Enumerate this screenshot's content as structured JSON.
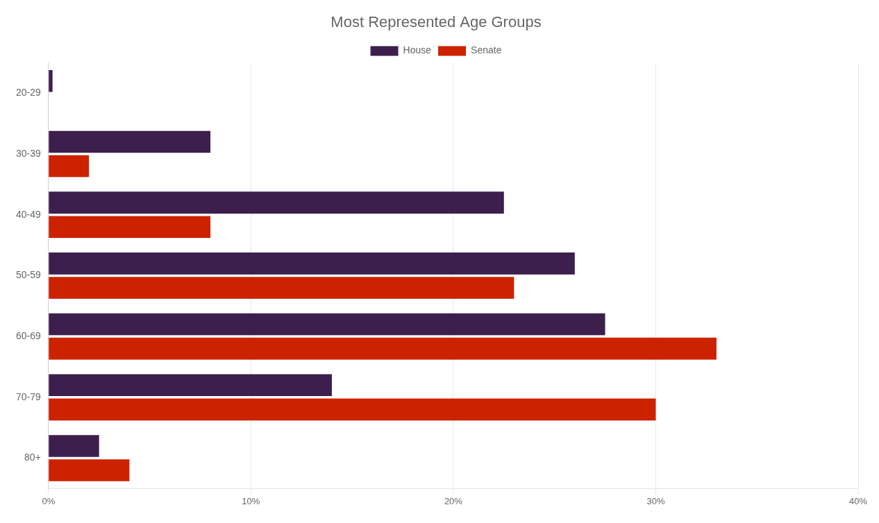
{
  "chart_data": {
    "type": "bar",
    "orientation": "horizontal",
    "title": "Most Represented Age Groups",
    "categories": [
      "20-29",
      "30-39",
      "40-49",
      "50-59",
      "60-69",
      "70-79",
      "80+"
    ],
    "series": [
      {
        "name": "House",
        "color": "#3d1f4e",
        "values": [
          0.2,
          8.0,
          22.5,
          26.0,
          27.5,
          14.0,
          2.5
        ]
      },
      {
        "name": "Senate",
        "color": "#cc2200",
        "values": [
          0.0,
          2.0,
          8.0,
          23.0,
          33.0,
          30.0,
          4.0
        ]
      }
    ],
    "xlim": [
      0,
      40
    ],
    "xticks": [
      {
        "value": 0,
        "label": "0%"
      },
      {
        "value": 10,
        "label": "10%"
      },
      {
        "value": 20,
        "label": "20%"
      },
      {
        "value": 30,
        "label": "30%"
      },
      {
        "value": 40,
        "label": "40%"
      }
    ],
    "grid": true,
    "legend": "top"
  }
}
